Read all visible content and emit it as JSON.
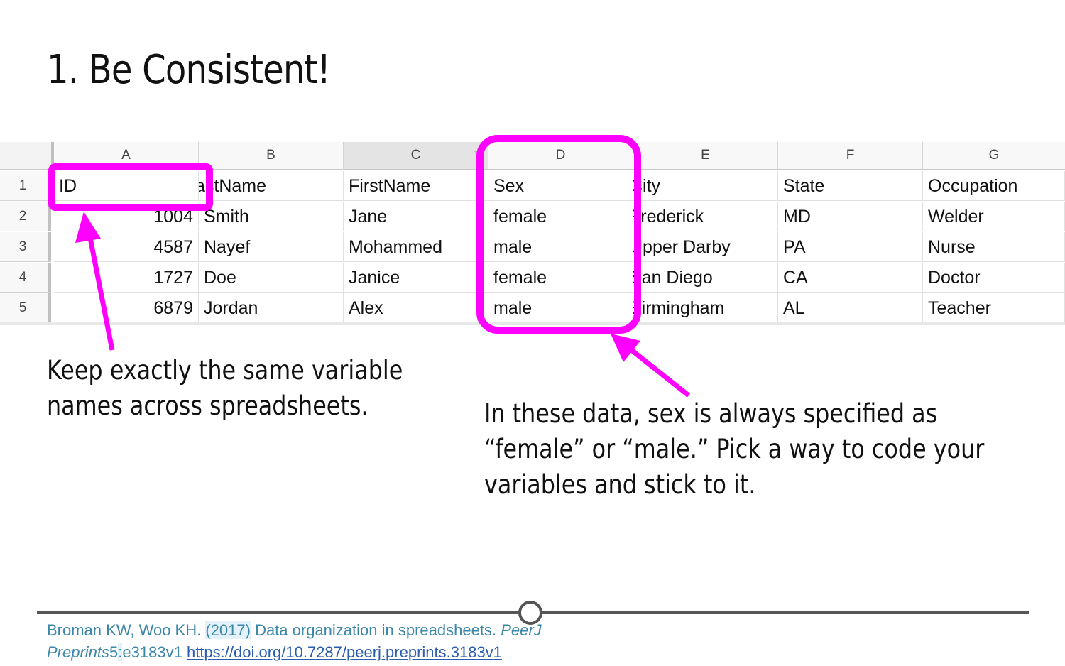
{
  "title": "1. Be Consistent!",
  "spreadsheet": {
    "columns": [
      "A",
      "B",
      "C",
      "D",
      "E",
      "F",
      "G"
    ],
    "rows": [
      "1",
      "2",
      "3",
      "4",
      "5"
    ],
    "cells": [
      [
        "ID",
        "astName",
        "FirstName",
        "Sex",
        "City",
        "State",
        "Occupation"
      ],
      [
        "1004",
        "Smith",
        "Jane",
        "female",
        "Frederick",
        "MD",
        "Welder"
      ],
      [
        "4587",
        "Nayef",
        "Mohammed",
        "male",
        "Upper Darby",
        "PA",
        "Nurse"
      ],
      [
        "1727",
        "Doe",
        "Janice",
        "female",
        "San Diego",
        "CA",
        "Doctor"
      ],
      [
        "6879",
        "Jordan",
        "Alex",
        "male",
        "Birmingham",
        "AL",
        "Teacher"
      ]
    ],
    "highlight_color": "#ff00ff"
  },
  "annotations": {
    "left": [
      "Keep exactly the same variable",
      "names across spreadsheets."
    ],
    "right": [
      "In these data, sex is always specified as",
      "“female” or “male.” Pick a way to code your",
      "variables and stick to it."
    ]
  },
  "citation": {
    "authors": "Broman KW, Woo KH.",
    "year": "(2017)",
    "title": "Data organization in spreadsheets.",
    "journal_a": "PeerJ",
    "journal_b": "Preprints",
    "volume": "5",
    "sep": ":",
    "article": "e3183v1",
    "link": "https://doi.org/10.7287/peerj.preprints.3183v1"
  }
}
